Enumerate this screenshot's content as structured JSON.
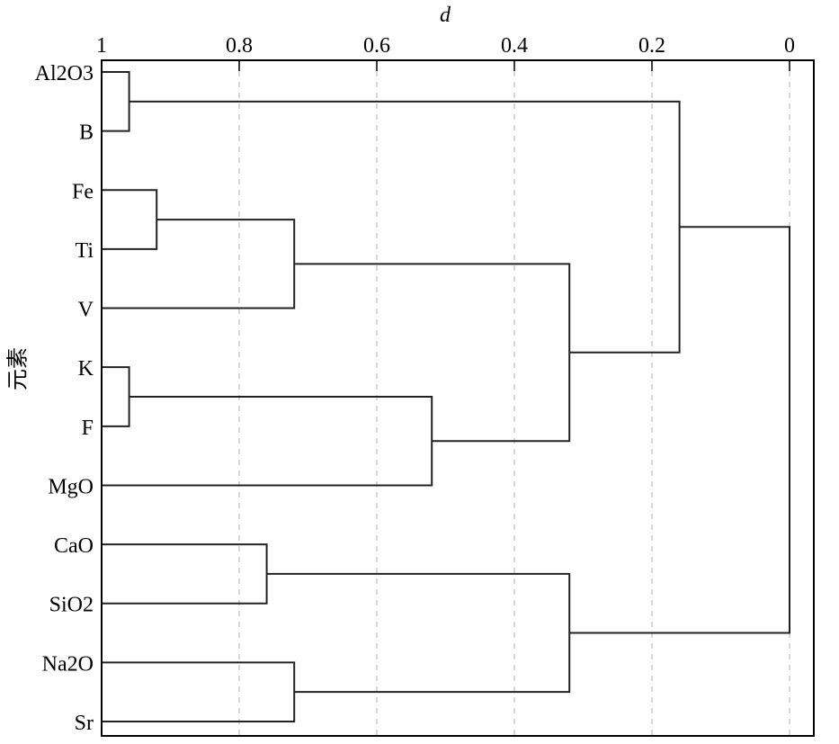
{
  "chart_data": {
    "type": "dendrogram",
    "title": "",
    "xlabel": "d",
    "ylabel": "元素",
    "xlim": [
      1,
      0
    ],
    "xticks": [
      1,
      0.8,
      0.6,
      0.4,
      0.2,
      0
    ],
    "xtick_labels": [
      "1",
      "0.8",
      "0.6",
      "0.4",
      "0.2",
      "0"
    ],
    "grid": "vertical dashed",
    "leaves": [
      "Al2O3",
      "B",
      "Fe",
      "Ti",
      "V",
      "K",
      "F",
      "MgO",
      "CaO",
      "SiO2",
      "Na2O",
      "Sr"
    ],
    "merges": [
      {
        "id": "c1",
        "a": "Al2O3",
        "b": "B",
        "d": 0.96
      },
      {
        "id": "c2",
        "a": "Fe",
        "b": "Ti",
        "d": 0.92
      },
      {
        "id": "c3",
        "a": "c2",
        "b": "V",
        "d": 0.72
      },
      {
        "id": "c4",
        "a": "K",
        "b": "F",
        "d": 0.96
      },
      {
        "id": "c5",
        "a": "c4",
        "b": "MgO",
        "d": 0.52
      },
      {
        "id": "c6",
        "a": "c3",
        "b": "c5",
        "d": 0.32
      },
      {
        "id": "c7",
        "a": "CaO",
        "b": "SiO2",
        "d": 0.76
      },
      {
        "id": "c8",
        "a": "Na2O",
        "b": "Sr",
        "d": 0.72
      },
      {
        "id": "c9",
        "a": "c7",
        "b": "c8",
        "d": 0.32
      },
      {
        "id": "c10",
        "a": "c1",
        "b": "c6",
        "d": 0.16
      },
      {
        "id": "c11",
        "a": "c10",
        "b": "c9",
        "d": 0.0
      }
    ],
    "colors": {
      "line": "#222222",
      "grid": "#cccccc"
    }
  }
}
